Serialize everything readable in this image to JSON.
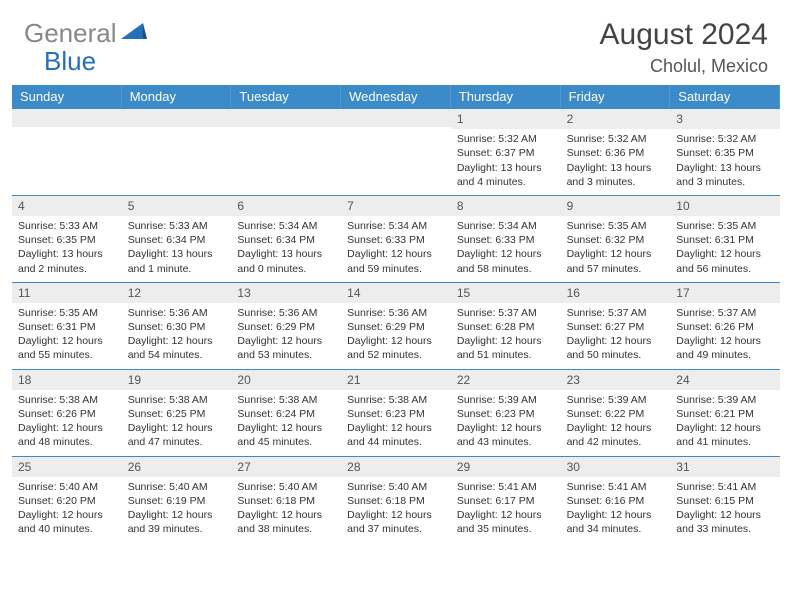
{
  "brand": {
    "part1": "General",
    "part2": "Blue"
  },
  "title": "August 2024",
  "location": "Cholul, Mexico",
  "weekdays": [
    "Sunday",
    "Monday",
    "Tuesday",
    "Wednesday",
    "Thursday",
    "Friday",
    "Saturday"
  ],
  "colors": {
    "header_bar": "#3b8bc8",
    "daynum_bg": "#ededed",
    "logo_gray": "#888888",
    "logo_blue": "#2270b8",
    "row_border": "#3b8bc8"
  },
  "weeks": [
    [
      {
        "n": "",
        "sr": "",
        "ss": "",
        "dl": ""
      },
      {
        "n": "",
        "sr": "",
        "ss": "",
        "dl": ""
      },
      {
        "n": "",
        "sr": "",
        "ss": "",
        "dl": ""
      },
      {
        "n": "",
        "sr": "",
        "ss": "",
        "dl": ""
      },
      {
        "n": "1",
        "sr": "Sunrise: 5:32 AM",
        "ss": "Sunset: 6:37 PM",
        "dl": "Daylight: 13 hours and 4 minutes."
      },
      {
        "n": "2",
        "sr": "Sunrise: 5:32 AM",
        "ss": "Sunset: 6:36 PM",
        "dl": "Daylight: 13 hours and 3 minutes."
      },
      {
        "n": "3",
        "sr": "Sunrise: 5:32 AM",
        "ss": "Sunset: 6:35 PM",
        "dl": "Daylight: 13 hours and 3 minutes."
      }
    ],
    [
      {
        "n": "4",
        "sr": "Sunrise: 5:33 AM",
        "ss": "Sunset: 6:35 PM",
        "dl": "Daylight: 13 hours and 2 minutes."
      },
      {
        "n": "5",
        "sr": "Sunrise: 5:33 AM",
        "ss": "Sunset: 6:34 PM",
        "dl": "Daylight: 13 hours and 1 minute."
      },
      {
        "n": "6",
        "sr": "Sunrise: 5:34 AM",
        "ss": "Sunset: 6:34 PM",
        "dl": "Daylight: 13 hours and 0 minutes."
      },
      {
        "n": "7",
        "sr": "Sunrise: 5:34 AM",
        "ss": "Sunset: 6:33 PM",
        "dl": "Daylight: 12 hours and 59 minutes."
      },
      {
        "n": "8",
        "sr": "Sunrise: 5:34 AM",
        "ss": "Sunset: 6:33 PM",
        "dl": "Daylight: 12 hours and 58 minutes."
      },
      {
        "n": "9",
        "sr": "Sunrise: 5:35 AM",
        "ss": "Sunset: 6:32 PM",
        "dl": "Daylight: 12 hours and 57 minutes."
      },
      {
        "n": "10",
        "sr": "Sunrise: 5:35 AM",
        "ss": "Sunset: 6:31 PM",
        "dl": "Daylight: 12 hours and 56 minutes."
      }
    ],
    [
      {
        "n": "11",
        "sr": "Sunrise: 5:35 AM",
        "ss": "Sunset: 6:31 PM",
        "dl": "Daylight: 12 hours and 55 minutes."
      },
      {
        "n": "12",
        "sr": "Sunrise: 5:36 AM",
        "ss": "Sunset: 6:30 PM",
        "dl": "Daylight: 12 hours and 54 minutes."
      },
      {
        "n": "13",
        "sr": "Sunrise: 5:36 AM",
        "ss": "Sunset: 6:29 PM",
        "dl": "Daylight: 12 hours and 53 minutes."
      },
      {
        "n": "14",
        "sr": "Sunrise: 5:36 AM",
        "ss": "Sunset: 6:29 PM",
        "dl": "Daylight: 12 hours and 52 minutes."
      },
      {
        "n": "15",
        "sr": "Sunrise: 5:37 AM",
        "ss": "Sunset: 6:28 PM",
        "dl": "Daylight: 12 hours and 51 minutes."
      },
      {
        "n": "16",
        "sr": "Sunrise: 5:37 AM",
        "ss": "Sunset: 6:27 PM",
        "dl": "Daylight: 12 hours and 50 minutes."
      },
      {
        "n": "17",
        "sr": "Sunrise: 5:37 AM",
        "ss": "Sunset: 6:26 PM",
        "dl": "Daylight: 12 hours and 49 minutes."
      }
    ],
    [
      {
        "n": "18",
        "sr": "Sunrise: 5:38 AM",
        "ss": "Sunset: 6:26 PM",
        "dl": "Daylight: 12 hours and 48 minutes."
      },
      {
        "n": "19",
        "sr": "Sunrise: 5:38 AM",
        "ss": "Sunset: 6:25 PM",
        "dl": "Daylight: 12 hours and 47 minutes."
      },
      {
        "n": "20",
        "sr": "Sunrise: 5:38 AM",
        "ss": "Sunset: 6:24 PM",
        "dl": "Daylight: 12 hours and 45 minutes."
      },
      {
        "n": "21",
        "sr": "Sunrise: 5:38 AM",
        "ss": "Sunset: 6:23 PM",
        "dl": "Daylight: 12 hours and 44 minutes."
      },
      {
        "n": "22",
        "sr": "Sunrise: 5:39 AM",
        "ss": "Sunset: 6:23 PM",
        "dl": "Daylight: 12 hours and 43 minutes."
      },
      {
        "n": "23",
        "sr": "Sunrise: 5:39 AM",
        "ss": "Sunset: 6:22 PM",
        "dl": "Daylight: 12 hours and 42 minutes."
      },
      {
        "n": "24",
        "sr": "Sunrise: 5:39 AM",
        "ss": "Sunset: 6:21 PM",
        "dl": "Daylight: 12 hours and 41 minutes."
      }
    ],
    [
      {
        "n": "25",
        "sr": "Sunrise: 5:40 AM",
        "ss": "Sunset: 6:20 PM",
        "dl": "Daylight: 12 hours and 40 minutes."
      },
      {
        "n": "26",
        "sr": "Sunrise: 5:40 AM",
        "ss": "Sunset: 6:19 PM",
        "dl": "Daylight: 12 hours and 39 minutes."
      },
      {
        "n": "27",
        "sr": "Sunrise: 5:40 AM",
        "ss": "Sunset: 6:18 PM",
        "dl": "Daylight: 12 hours and 38 minutes."
      },
      {
        "n": "28",
        "sr": "Sunrise: 5:40 AM",
        "ss": "Sunset: 6:18 PM",
        "dl": "Daylight: 12 hours and 37 minutes."
      },
      {
        "n": "29",
        "sr": "Sunrise: 5:41 AM",
        "ss": "Sunset: 6:17 PM",
        "dl": "Daylight: 12 hours and 35 minutes."
      },
      {
        "n": "30",
        "sr": "Sunrise: 5:41 AM",
        "ss": "Sunset: 6:16 PM",
        "dl": "Daylight: 12 hours and 34 minutes."
      },
      {
        "n": "31",
        "sr": "Sunrise: 5:41 AM",
        "ss": "Sunset: 6:15 PM",
        "dl": "Daylight: 12 hours and 33 minutes."
      }
    ]
  ]
}
